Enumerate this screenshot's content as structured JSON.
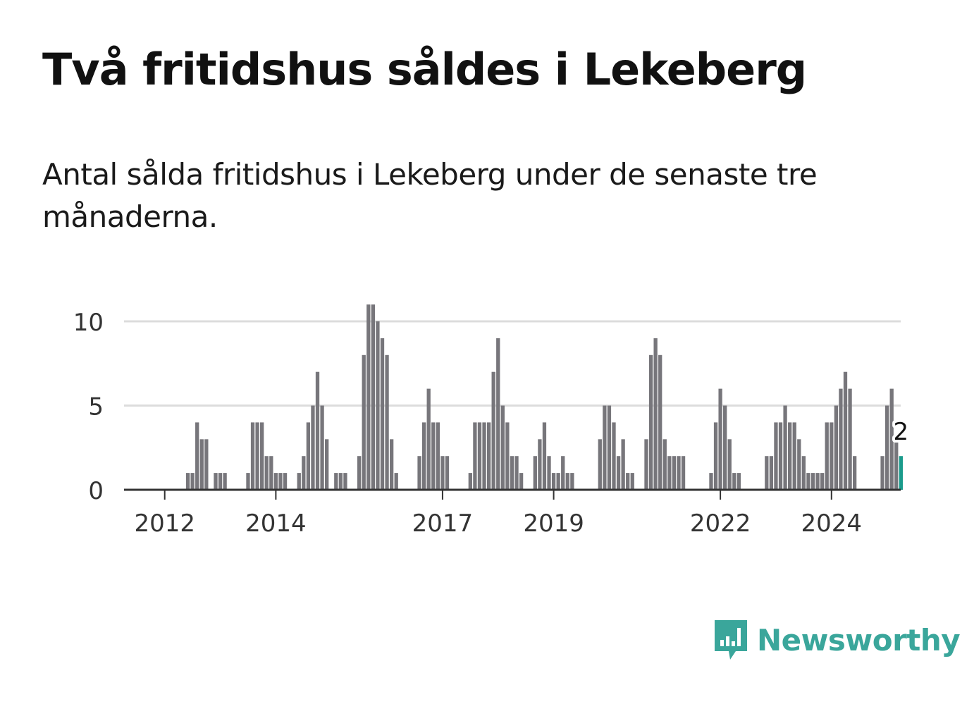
{
  "title": "Två fritidshus såldes i Lekeberg",
  "subtitle": "Antal sålda fritidshus i Lekeberg under de senaste tre månaderna.",
  "colors": {
    "bar": "#77767b",
    "highlight": "#1a9b8c",
    "grid": "#dcdcdc",
    "axis": "#333333",
    "brand": "#3aa69b"
  },
  "logo": {
    "text": "Newsworthy",
    "icon": "newsworthy-bar-chart-icon"
  },
  "chart_data": {
    "type": "bar",
    "title": "Två fritidshus såldes i Lekeberg",
    "xlabel": "",
    "ylabel": "",
    "ylim": [
      0,
      11
    ],
    "y_ticks": [
      0,
      5,
      10
    ],
    "x_ticks": [
      "2012",
      "2014",
      "2017",
      "2019",
      "2022",
      "2024"
    ],
    "grid": true,
    "legend": "none",
    "highlight_label": "2",
    "values": [
      0,
      0,
      0,
      0,
      0,
      0,
      0,
      0,
      0,
      0,
      0,
      0,
      0,
      1,
      1,
      4,
      3,
      3,
      0,
      1,
      1,
      1,
      0,
      0,
      0,
      0,
      1,
      4,
      4,
      4,
      2,
      2,
      1,
      1,
      1,
      0,
      0,
      1,
      2,
      4,
      5,
      7,
      5,
      3,
      0,
      1,
      1,
      1,
      0,
      0,
      2,
      8,
      11,
      11,
      10,
      9,
      8,
      3,
      1,
      0,
      0,
      0,
      0,
      2,
      4,
      6,
      4,
      4,
      2,
      2,
      0,
      0,
      0,
      0,
      1,
      4,
      4,
      4,
      4,
      7,
      9,
      5,
      4,
      2,
      2,
      1,
      0,
      0,
      2,
      3,
      4,
      2,
      1,
      1,
      2,
      1,
      1,
      0,
      0,
      0,
      0,
      0,
      3,
      5,
      5,
      4,
      2,
      3,
      1,
      1,
      0,
      0,
      3,
      8,
      9,
      8,
      3,
      2,
      2,
      2,
      2,
      0,
      0,
      0,
      0,
      0,
      1,
      4,
      6,
      5,
      3,
      1,
      1,
      0,
      0,
      0,
      0,
      0,
      2,
      2,
      4,
      4,
      5,
      4,
      4,
      3,
      2,
      1,
      1,
      1,
      1,
      4,
      4,
      5,
      6,
      7,
      6,
      2,
      0,
      0,
      0,
      0,
      0,
      2,
      5,
      6,
      3,
      2
    ]
  }
}
